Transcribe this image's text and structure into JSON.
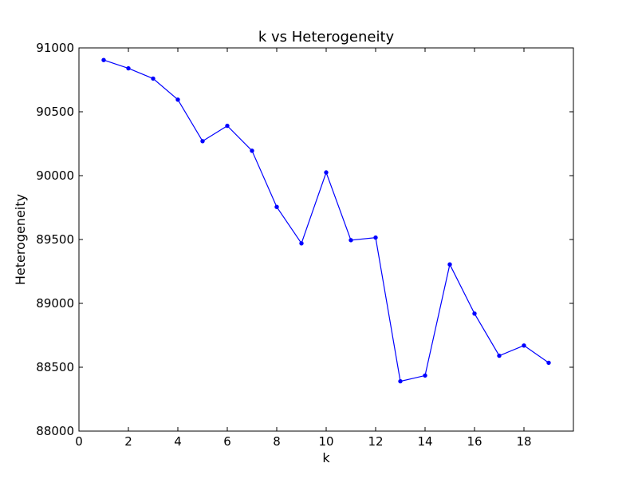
{
  "chart_data": {
    "type": "line",
    "title": "k vs Heterogeneity",
    "xlabel": "k",
    "ylabel": "Heterogeneity",
    "xlim": [
      0,
      20
    ],
    "ylim": [
      88000,
      91000
    ],
    "x_ticks": [
      0,
      2,
      4,
      6,
      8,
      10,
      12,
      14,
      16,
      18
    ],
    "x_tick_labels": [
      "0",
      "2",
      "4",
      "6",
      "8",
      "10",
      "12",
      "14",
      "16",
      "18"
    ],
    "y_ticks": [
      88000,
      88500,
      89000,
      89500,
      90000,
      90500,
      91000
    ],
    "y_tick_labels": [
      "88000",
      "88500",
      "89000",
      "89500",
      "90000",
      "90500",
      "91000"
    ],
    "grid": false,
    "legend": "none",
    "series": [
      {
        "color": "#0000ff",
        "marker": "point",
        "x": [
          1,
          2,
          3,
          4,
          5,
          6,
          7,
          8,
          9,
          10,
          11,
          12,
          13,
          14,
          15,
          16,
          17,
          18,
          19
        ],
        "y": [
          90905,
          90840,
          90760,
          90595,
          90270,
          90390,
          90195,
          89755,
          89470,
          90025,
          89495,
          89515,
          88390,
          88435,
          89305,
          88920,
          88590,
          88670,
          88535
        ]
      }
    ]
  }
}
